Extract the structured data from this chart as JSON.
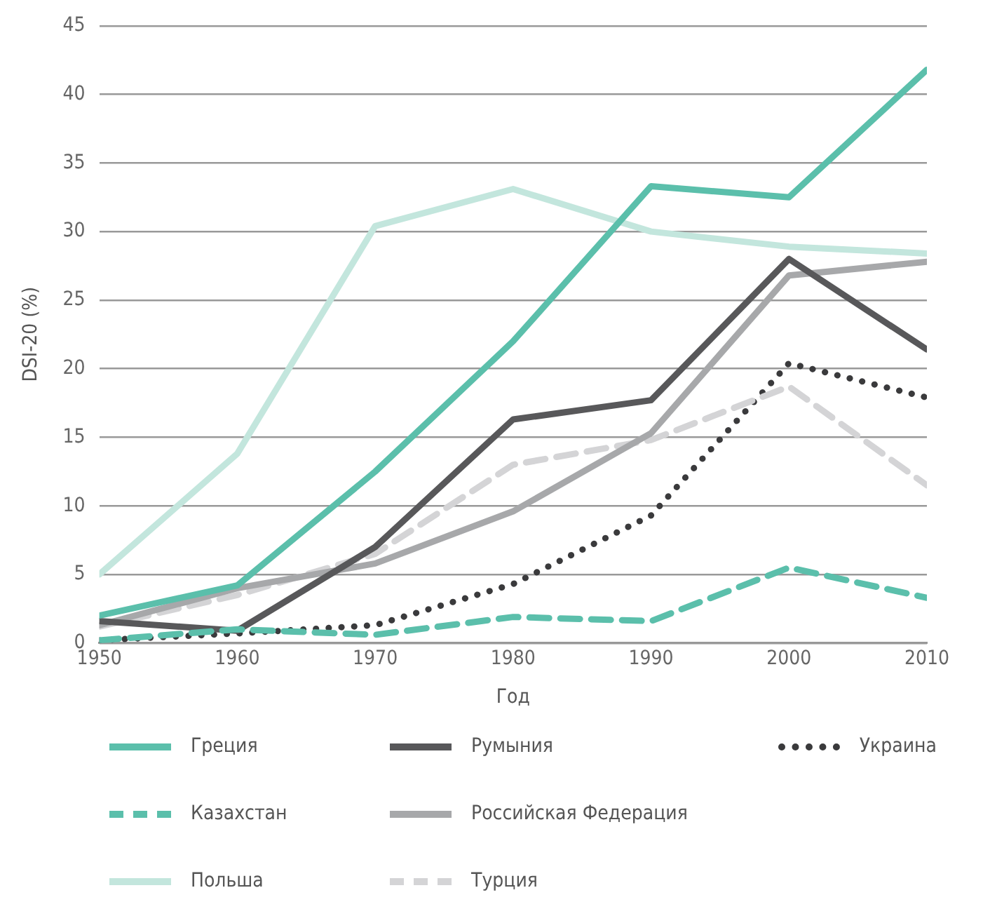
{
  "chart_data": {
    "type": "line",
    "xlabel": "Год",
    "ylabel": "DSI-20 (%)",
    "x": [
      1950,
      1960,
      1970,
      1980,
      1990,
      2000,
      2010
    ],
    "xlim": [
      1950,
      2010
    ],
    "xticks": [
      1950,
      1960,
      1970,
      1980,
      1990,
      2000,
      2010
    ],
    "ylim": [
      0,
      45
    ],
    "yticks": [
      0,
      5,
      10,
      15,
      20,
      25,
      30,
      35,
      40,
      45
    ],
    "grid": "y",
    "legend": "bottom",
    "marker": "none",
    "series": [
      {
        "name": "Греция",
        "color": "#5bbfab",
        "line_style": "solid",
        "values": [
          2,
          4.2,
          12.5,
          22,
          33.3,
          32.5,
          41.8
        ]
      },
      {
        "name": "Казахстан",
        "color": "#5bbfab",
        "line_style": "dashed",
        "values": [
          0.2,
          1,
          0.6,
          1.9,
          1.6,
          5.5,
          3.3
        ]
      },
      {
        "name": "Польша",
        "color": "#c3e6dd",
        "line_style": "solid",
        "values": [
          5,
          13.8,
          30.4,
          33.1,
          30,
          28.9,
          28.4
        ]
      },
      {
        "name": "Румыния",
        "color": "#58585a",
        "line_style": "solid",
        "values": [
          1.6,
          0.9,
          7,
          16.3,
          17.7,
          28,
          21.4
        ]
      },
      {
        "name": "Российская Федерация",
        "color": "#a7a8aa",
        "line_style": "solid",
        "values": [
          1.3,
          4,
          5.8,
          9.6,
          15.3,
          26.8,
          27.8
        ]
      },
      {
        "name": "Турция",
        "color": "#d4d4d6",
        "line_style": "dashed",
        "values": [
          1.2,
          3.5,
          6.5,
          13,
          14.8,
          18.7,
          11.5
        ]
      },
      {
        "name": "Украина",
        "color": "#3a3a3c",
        "line_style": "dotted",
        "values": [
          0.2,
          0.7,
          1.3,
          4.3,
          9.3,
          20.4,
          17.9
        ]
      }
    ]
  }
}
